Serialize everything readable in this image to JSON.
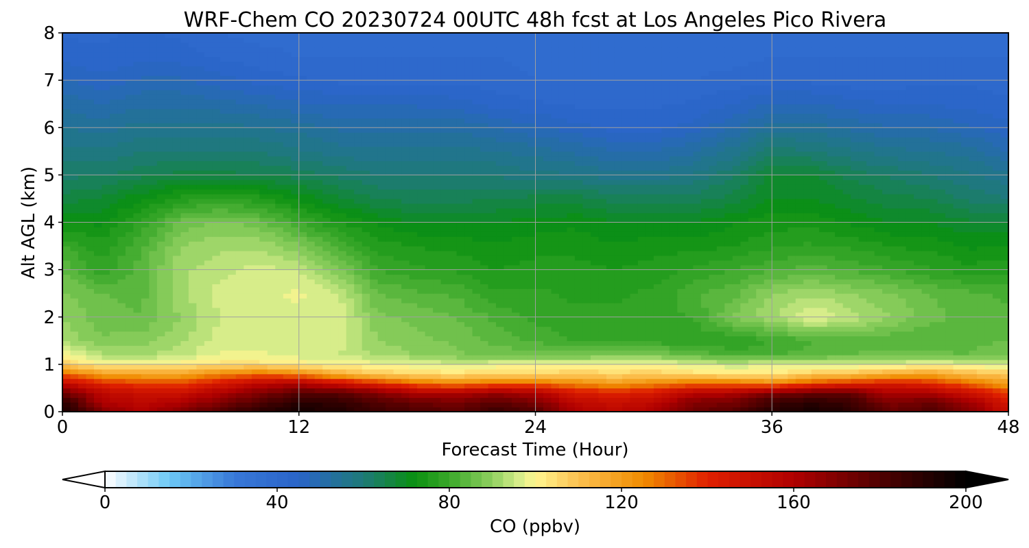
{
  "chart_data": {
    "type": "heatmap",
    "title": "WRF-Chem CO  20230724 00UTC 48h fcst at Los Angeles Pico Rivera",
    "xlabel": "Forecast Time (Hour)",
    "ylabel": "Alt AGL (km)",
    "xlim": [
      0,
      48
    ],
    "ylim": [
      0,
      8
    ],
    "x_ticks": [
      "0",
      "12",
      "24",
      "36",
      "48"
    ],
    "y_ticks": [
      "0",
      "1",
      "2",
      "3",
      "4",
      "5",
      "6",
      "7",
      "8"
    ],
    "grid": true,
    "colorbar": {
      "label": "CO  (ppbv)",
      "min": 0,
      "max": 200,
      "extend": "both",
      "ticks": [
        "0",
        "40",
        "80",
        "120",
        "160",
        "200"
      ],
      "stops": [
        {
          "value": 0,
          "color": "#ffffff"
        },
        {
          "value": 15,
          "color": "#6cc8f5"
        },
        {
          "value": 30,
          "color": "#3878d8"
        },
        {
          "value": 45,
          "color": "#2a64c8"
        },
        {
          "value": 60,
          "color": "#1e7a78"
        },
        {
          "value": 72,
          "color": "#0a9010"
        },
        {
          "value": 80,
          "color": "#3aa82a"
        },
        {
          "value": 90,
          "color": "#90d060"
        },
        {
          "value": 96,
          "color": "#d4ec8a"
        },
        {
          "value": 100,
          "color": "#fff690"
        },
        {
          "value": 110,
          "color": "#fcc050"
        },
        {
          "value": 125,
          "color": "#f08c00"
        },
        {
          "value": 140,
          "color": "#e02000"
        },
        {
          "value": 160,
          "color": "#b00000"
        },
        {
          "value": 180,
          "color": "#500000"
        },
        {
          "value": 200,
          "color": "#000000"
        }
      ]
    },
    "grid_hours": [
      0,
      2,
      4,
      6,
      8,
      10,
      12,
      14,
      16,
      18,
      20,
      22,
      24,
      26,
      28,
      30,
      32,
      34,
      36,
      38,
      40,
      42,
      44,
      46,
      48
    ],
    "grid_alt_km": [
      0,
      0.2,
      0.4,
      0.6,
      0.8,
      1.0,
      1.2,
      1.5,
      2.0,
      2.5,
      3.0,
      3.5,
      4.0,
      4.5,
      5.0,
      5.5,
      6.0,
      6.5,
      7.0,
      7.5,
      8.0
    ],
    "values": [
      [
        195,
        170,
        160,
        170,
        180,
        190,
        195,
        192,
        185,
        180,
        178,
        185,
        180,
        160,
        155,
        160,
        175,
        178,
        190,
        195,
        190,
        175,
        180,
        170,
        150
      ],
      [
        190,
        160,
        155,
        160,
        170,
        180,
        190,
        188,
        180,
        175,
        172,
        178,
        172,
        155,
        150,
        155,
        170,
        172,
        185,
        190,
        185,
        170,
        175,
        165,
        145
      ],
      [
        175,
        155,
        150,
        150,
        160,
        170,
        178,
        178,
        170,
        160,
        160,
        165,
        160,
        145,
        140,
        145,
        158,
        160,
        170,
        175,
        175,
        160,
        160,
        150,
        135
      ],
      [
        155,
        140,
        135,
        135,
        145,
        155,
        160,
        150,
        140,
        130,
        125,
        130,
        130,
        125,
        120,
        125,
        130,
        130,
        125,
        135,
        140,
        145,
        140,
        130,
        120
      ],
      [
        130,
        120,
        118,
        118,
        125,
        130,
        125,
        115,
        108,
        105,
        104,
        106,
        105,
        108,
        106,
        108,
        104,
        103,
        102,
        108,
        110,
        115,
        118,
        112,
        108
      ],
      [
        108,
        100,
        101,
        102,
        104,
        104,
        102,
        100,
        99,
        98,
        96,
        98,
        99,
        100,
        100,
        100,
        97,
        95,
        97,
        97,
        96,
        97,
        100,
        97,
        96
      ],
      [
        100,
        93,
        92,
        94,
        98,
        98,
        96,
        95,
        92,
        90,
        88,
        87,
        86,
        86,
        88,
        87,
        85,
        82,
        82,
        84,
        85,
        86,
        86,
        85,
        88
      ],
      [
        92,
        88,
        89,
        92,
        96,
        97,
        97,
        96,
        90,
        88,
        87,
        84,
        82,
        80,
        79,
        79,
        78,
        77,
        80,
        82,
        84,
        83,
        82,
        84,
        85
      ],
      [
        90,
        86,
        85,
        90,
        95,
        96,
        97,
        97,
        88,
        87,
        85,
        82,
        79,
        78,
        78,
        79,
        80,
        88,
        92,
        98,
        94,
        90,
        86,
        84,
        83
      ],
      [
        88,
        85,
        84,
        92,
        96,
        97,
        98,
        95,
        85,
        83,
        82,
        78,
        78,
        77,
        77,
        78,
        82,
        84,
        90,
        92,
        90,
        88,
        85,
        83,
        82
      ],
      [
        85,
        78,
        84,
        92,
        94,
        96,
        95,
        88,
        80,
        78,
        77,
        75,
        76,
        76,
        75,
        76,
        78,
        80,
        82,
        84,
        82,
        80,
        78,
        76,
        77
      ],
      [
        80,
        76,
        82,
        90,
        92,
        92,
        88,
        82,
        76,
        75,
        74,
        73,
        74,
        74,
        73,
        74,
        74,
        75,
        77,
        78,
        77,
        75,
        74,
        72,
        73
      ],
      [
        72,
        72,
        78,
        86,
        88,
        86,
        80,
        75,
        72,
        70,
        70,
        70,
        71,
        72,
        70,
        70,
        70,
        72,
        74,
        74,
        72,
        70,
        70,
        68,
        68
      ],
      [
        66,
        68,
        72,
        76,
        78,
        76,
        72,
        68,
        65,
        64,
        64,
        65,
        66,
        66,
        64,
        64,
        64,
        66,
        70,
        70,
        68,
        66,
        65,
        62,
        60
      ],
      [
        62,
        62,
        64,
        66,
        66,
        65,
        64,
        62,
        60,
        60,
        60,
        60,
        58,
        58,
        56,
        56,
        58,
        62,
        68,
        68,
        64,
        62,
        60,
        58,
        56
      ],
      [
        58,
        58,
        60,
        60,
        60,
        60,
        58,
        56,
        56,
        56,
        56,
        55,
        54,
        52,
        50,
        50,
        52,
        56,
        62,
        60,
        58,
        56,
        55,
        54,
        50
      ],
      [
        55,
        54,
        56,
        56,
        56,
        55,
        54,
        52,
        52,
        52,
        52,
        50,
        48,
        46,
        44,
        44,
        46,
        50,
        54,
        54,
        52,
        50,
        50,
        48,
        46
      ],
      [
        52,
        50,
        52,
        52,
        51,
        50,
        48,
        47,
        47,
        47,
        46,
        44,
        43,
        42,
        42,
        42,
        43,
        45,
        48,
        48,
        46,
        45,
        45,
        44,
        43
      ],
      [
        48,
        46,
        48,
        48,
        46,
        44,
        43,
        42,
        42,
        42,
        42,
        41,
        40,
        40,
        40,
        40,
        40,
        41,
        42,
        42,
        41,
        41,
        42,
        42,
        41
      ],
      [
        44,
        43,
        44,
        44,
        42,
        41,
        40,
        40,
        40,
        40,
        40,
        40,
        39,
        39,
        39,
        39,
        39,
        39,
        40,
        40,
        40,
        40,
        40,
        40,
        40
      ],
      [
        42,
        42,
        43,
        42,
        40,
        39,
        39,
        39,
        39,
        39,
        39,
        39,
        38,
        38,
        38,
        38,
        38,
        38,
        38,
        38,
        38,
        38,
        38,
        38,
        38
      ]
    ]
  }
}
